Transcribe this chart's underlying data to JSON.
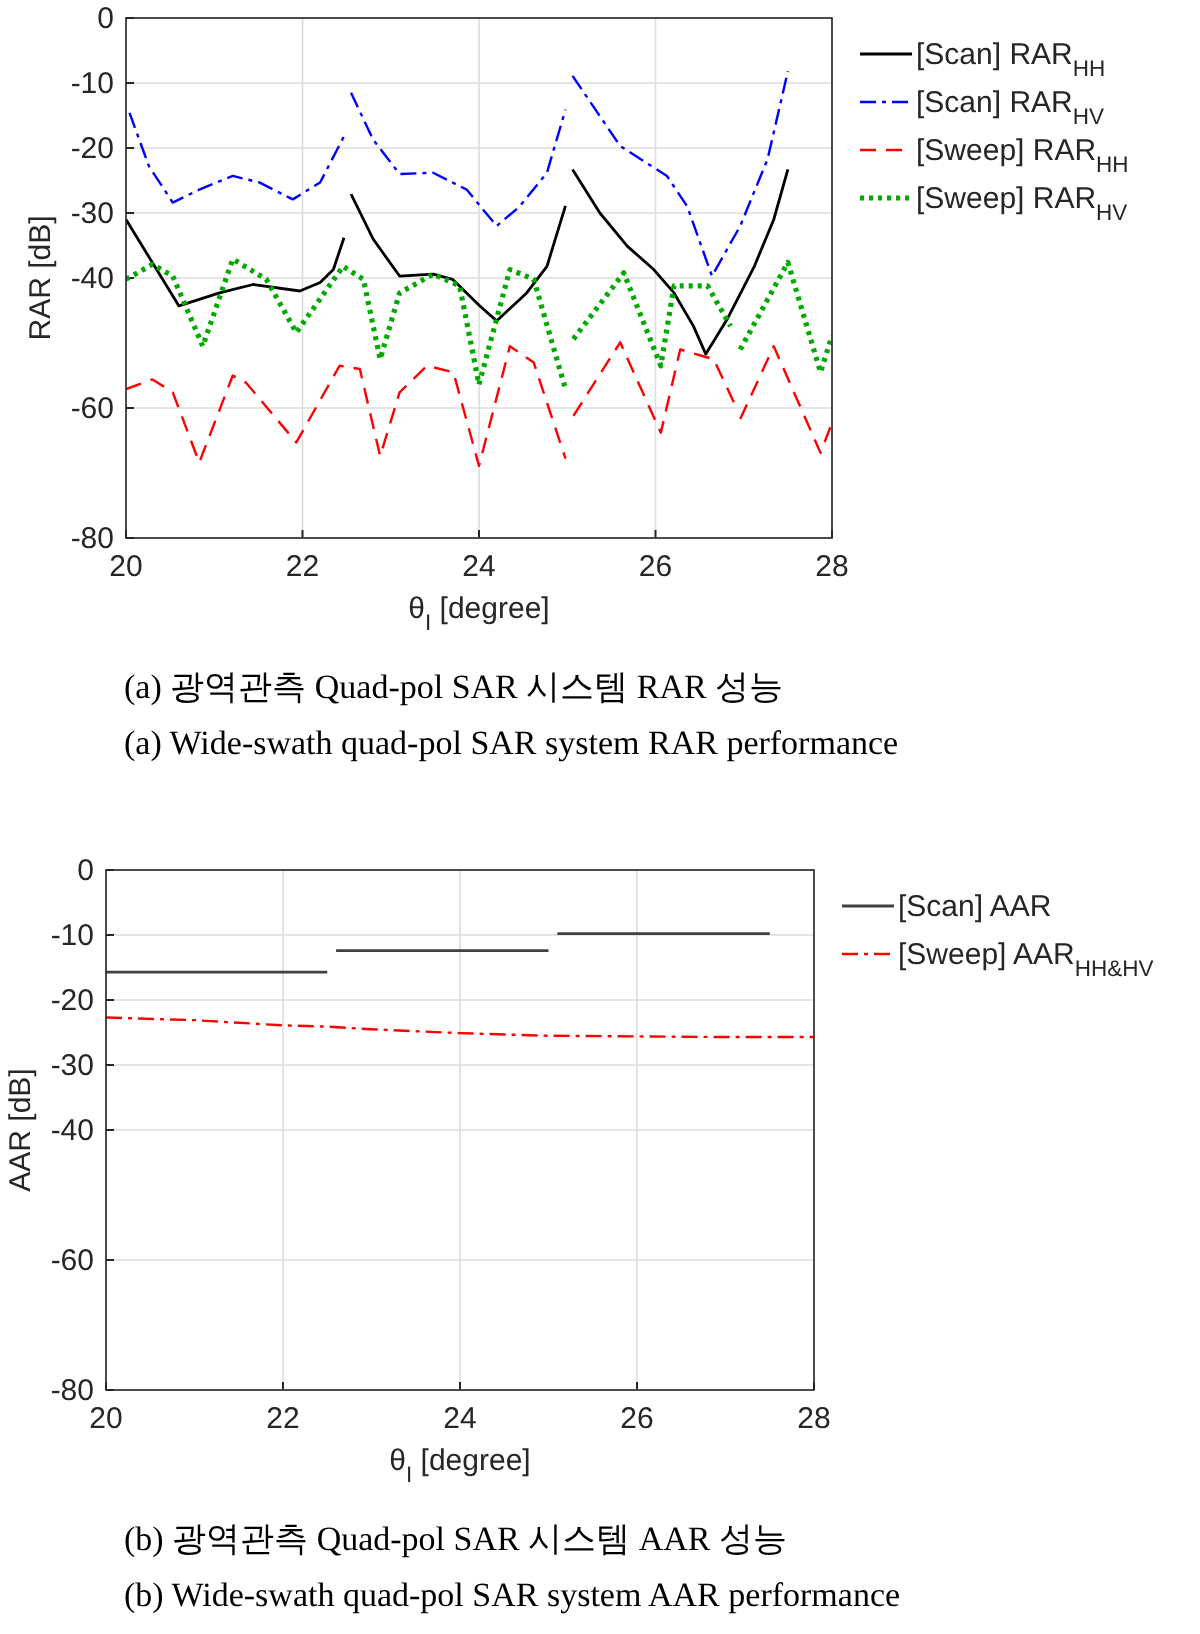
{
  "chart_data": [
    {
      "type": "line",
      "xlabel": "θ$_{I}$ [degree]",
      "ylabel": "RAR [dB]",
      "xlim": [
        20,
        28
      ],
      "xticks": [
        20,
        22,
        24,
        26,
        28
      ],
      "ylim": [
        -80,
        0
      ],
      "yticks": [
        0,
        -10,
        -20,
        -30,
        -40,
        -60,
        -80
      ],
      "grid": true,
      "legend": "top right",
      "series": [
        {
          "name": "[Scan] RAR$_{HH}$",
          "color": "#000000",
          "line_style": "solid",
          "x": [
            20,
            20.6,
            21.06,
            21.44,
            21.97,
            22.2,
            22.35,
            22.47
          ],
          "values": [
            -31,
            -44.3,
            -42.3,
            -41,
            -42,
            -40.7,
            -38.7,
            -33.8
          ]
        },
        {
          "color": "#000000",
          "line_style": "solid",
          "x": [
            22.55,
            22.8,
            23.1,
            23.48,
            23.7,
            24.01,
            24.2,
            24.54,
            24.77,
            24.98
          ],
          "values": [
            -27.1,
            -34,
            -39.7,
            -39.4,
            -40.2,
            -44.3,
            -46.6,
            -42.3,
            -38.2,
            -28.9
          ]
        },
        {
          "color": "#000000",
          "line_style": "solid",
          "x": [
            25.06,
            25.37,
            25.68,
            25.98,
            26.21,
            26.43,
            26.57,
            26.81,
            27.12,
            27.34,
            27.5
          ],
          "values": [
            -23.3,
            -30,
            -35.1,
            -38.7,
            -42.3,
            -47.4,
            -51.7,
            -46.4,
            -38.2,
            -31,
            -23.3
          ]
        },
        {
          "name": "[Scan] RAR$_{HV}$",
          "color": "#0000ff",
          "line_style": "dashdot",
          "x": [
            20.04,
            20.26,
            20.53,
            20.83,
            21.21,
            21.51,
            21.89,
            22.2,
            22.47
          ],
          "values": [
            -14.6,
            -22.8,
            -28.4,
            -26.4,
            -24.3,
            -25.3,
            -27.9,
            -25.3,
            -18.2
          ]
        },
        {
          "color": "#0000ff",
          "line_style": "dashdot",
          "x": [
            22.55,
            22.8,
            23.1,
            23.48,
            23.86,
            24.2,
            24.46,
            24.77,
            24.98
          ],
          "values": [
            -11.5,
            -18.7,
            -24,
            -23.8,
            -26.4,
            -32,
            -29,
            -23.8,
            -14.1
          ]
        },
        {
          "color": "#0000ff",
          "line_style": "dashdot",
          "x": [
            25.06,
            25.6,
            26.13,
            26.36,
            26.64,
            26.96,
            27.27,
            27.5
          ],
          "values": [
            -8.9,
            -19.7,
            -24.3,
            -29,
            -39.7,
            -32,
            -21.7,
            -8.2
          ]
        },
        {
          "name": "[Sweep] RAR$_{HH}$",
          "color": "#ff0000",
          "line_style": "dashed",
          "x": [
            20,
            20.3,
            20.53,
            20.83,
            21.21,
            21.36,
            21.93,
            22.42,
            22.65,
            22.88,
            23.1,
            23.41,
            23.71,
            24,
            24.35,
            24.62,
            24.98
          ],
          "values": [
            -57.1,
            -55.6,
            -57.6,
            -68.4,
            -55,
            -56.1,
            -65.3,
            -53.5,
            -54,
            -67.4,
            -57.6,
            -53.5,
            -54.5,
            -68.9,
            -50.5,
            -53,
            -67.8
          ]
        },
        {
          "color": "#ff0000",
          "line_style": "dashed",
          "x": [
            25.07,
            25.6,
            26.06,
            26.28,
            26.66,
            26.89
          ],
          "values": [
            -61.2,
            -49.9,
            -63.8,
            -51,
            -52.5,
            -59.2
          ]
        },
        {
          "color": "#ff0000",
          "line_style": "dashed",
          "x": [
            26.96,
            27.34,
            27.87,
            28
          ],
          "values": [
            -61.7,
            -50.5,
            -66.9,
            -62.3
          ]
        },
        {
          "name": "[Sweep] RAR$_{HV}$",
          "color": "#00aa00",
          "line_style": "dotted",
          "x": [
            20,
            20.3,
            20.53,
            20.87,
            21.21,
            21.59,
            21.93,
            22.46,
            22.69,
            22.88,
            23.1,
            23.48,
            23.78,
            24,
            24.35,
            24.62,
            24.98
          ],
          "values": [
            -40.2,
            -37.9,
            -39.7,
            -50.5,
            -37.1,
            -40.2,
            -48.4,
            -38.2,
            -40.2,
            -52.5,
            -42.3,
            -39.4,
            -41.2,
            -56.4,
            -38.7,
            -40.2,
            -57.1
          ]
        },
        {
          "color": "#00aa00",
          "line_style": "dotted",
          "x": [
            25.07,
            25.64,
            26.06,
            26.21,
            26.59,
            26.85
          ],
          "values": [
            -49.4,
            -39.2,
            -53.5,
            -41.2,
            -41.2,
            -47.4
          ]
        },
        {
          "color": "#00aa00",
          "line_style": "dotted",
          "x": [
            26.96,
            27.5,
            27.87,
            28
          ],
          "values": [
            -51,
            -37.6,
            -54.5,
            -48.9
          ]
        }
      ],
      "annotations": [
        "(a)  광역관측 Quad-pol SAR 시스템 RAR 성능",
        "(a)  Wide-swath quad-pol SAR system RAR performance"
      ]
    },
    {
      "type": "line",
      "xlabel": "θ$_{I}$ [degree]",
      "ylabel": "AAR [dB]",
      "xlim": [
        20,
        28
      ],
      "xticks": [
        20,
        22,
        24,
        26,
        28
      ],
      "ylim": [
        -80,
        0
      ],
      "yticks": [
        0,
        -10,
        -20,
        -30,
        -40,
        -60,
        -80
      ],
      "grid": true,
      "legend": "top right",
      "series": [
        {
          "name": "[Scan] AAR",
          "color": "#404040",
          "line_style": "solid",
          "x": [
            20,
            22.5
          ],
          "values": [
            -15.7,
            -15.7
          ]
        },
        {
          "color": "#404040",
          "line_style": "solid",
          "x": [
            22.6,
            25
          ],
          "values": [
            -12.4,
            -12.4
          ]
        },
        {
          "color": "#404040",
          "line_style": "solid",
          "x": [
            25.1,
            27.5
          ],
          "values": [
            -9.8,
            -9.8
          ]
        },
        {
          "name": "[Sweep] AAR$_{HH&HV}$",
          "color": "#ff0000",
          "line_style": "dashdot",
          "x": [
            20,
            21,
            22,
            22.5,
            23,
            24,
            25,
            26,
            27,
            28
          ],
          "values": [
            -22.7,
            -23.1,
            -23.9,
            -24.1,
            -24.5,
            -25.1,
            -25.5,
            -25.6,
            -25.7,
            -25.7
          ]
        }
      ],
      "annotations": [
        "(b)  광역관측 Quad-pol SAR 시스템 AAR 성능",
        "(b)  Wide-swath quad-pol SAR system AAR performance"
      ]
    }
  ]
}
